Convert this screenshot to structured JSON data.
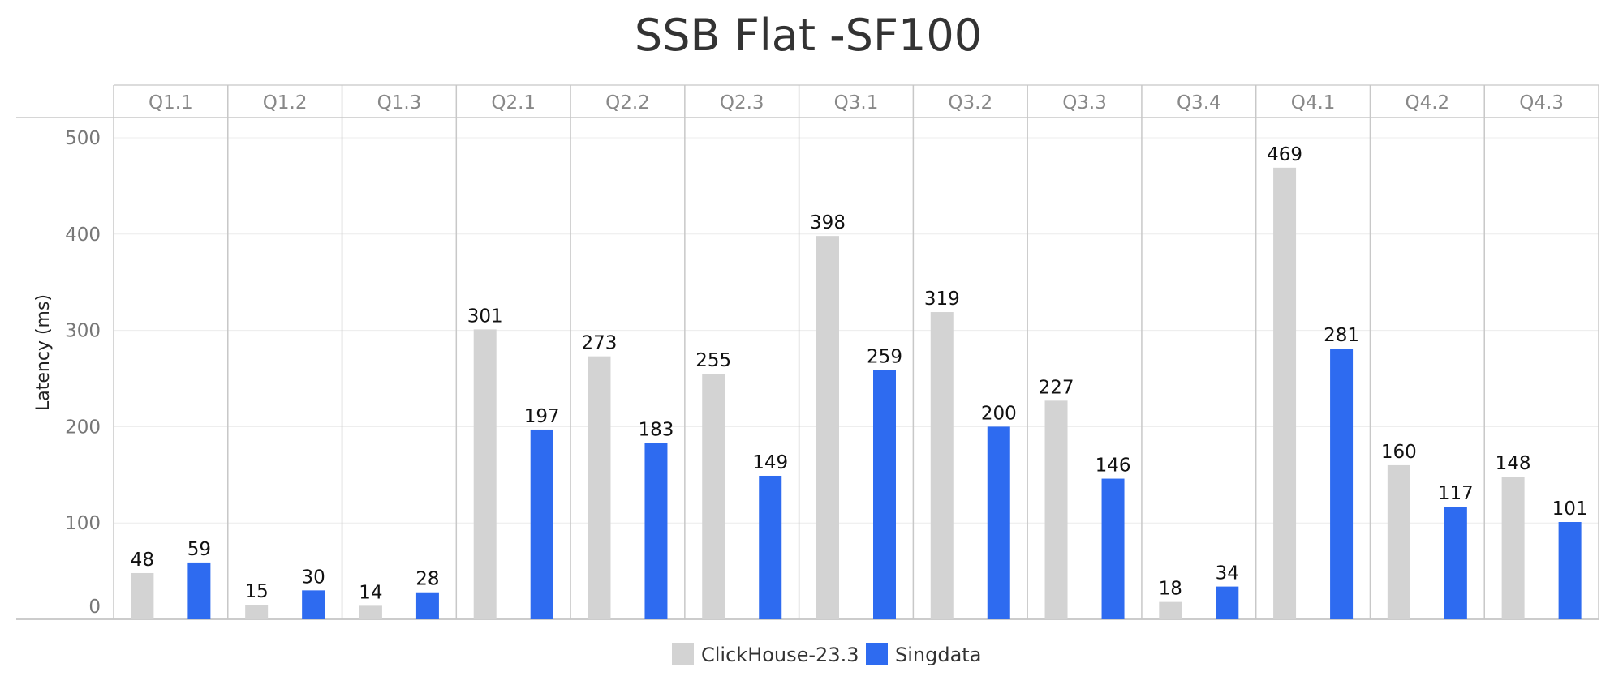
{
  "chart_data": {
    "type": "bar",
    "title": "SSB Flat -SF100",
    "xlabel": "",
    "ylabel": "Latency (ms)",
    "ylim": [
      0,
      520
    ],
    "yticks": [
      0,
      100,
      200,
      300,
      400,
      500
    ],
    "grid": true,
    "legend_position": "bottom-center",
    "categories": [
      "Q1.1",
      "Q1.2",
      "Q1.3",
      "Q2.1",
      "Q2.2",
      "Q2.3",
      "Q3.1",
      "Q3.2",
      "Q3.3",
      "Q3.4",
      "Q4.1",
      "Q4.2",
      "Q4.3"
    ],
    "series": [
      {
        "name": "ClickHouse-23.3",
        "color": "#d3d3d3",
        "values": [
          48,
          15,
          14,
          301,
          273,
          255,
          398,
          319,
          227,
          18,
          469,
          160,
          148
        ]
      },
      {
        "name": "Singdata",
        "color": "#2e6bf0",
        "values": [
          59,
          30,
          28,
          197,
          183,
          149,
          259,
          200,
          146,
          34,
          281,
          117,
          101
        ]
      }
    ]
  }
}
